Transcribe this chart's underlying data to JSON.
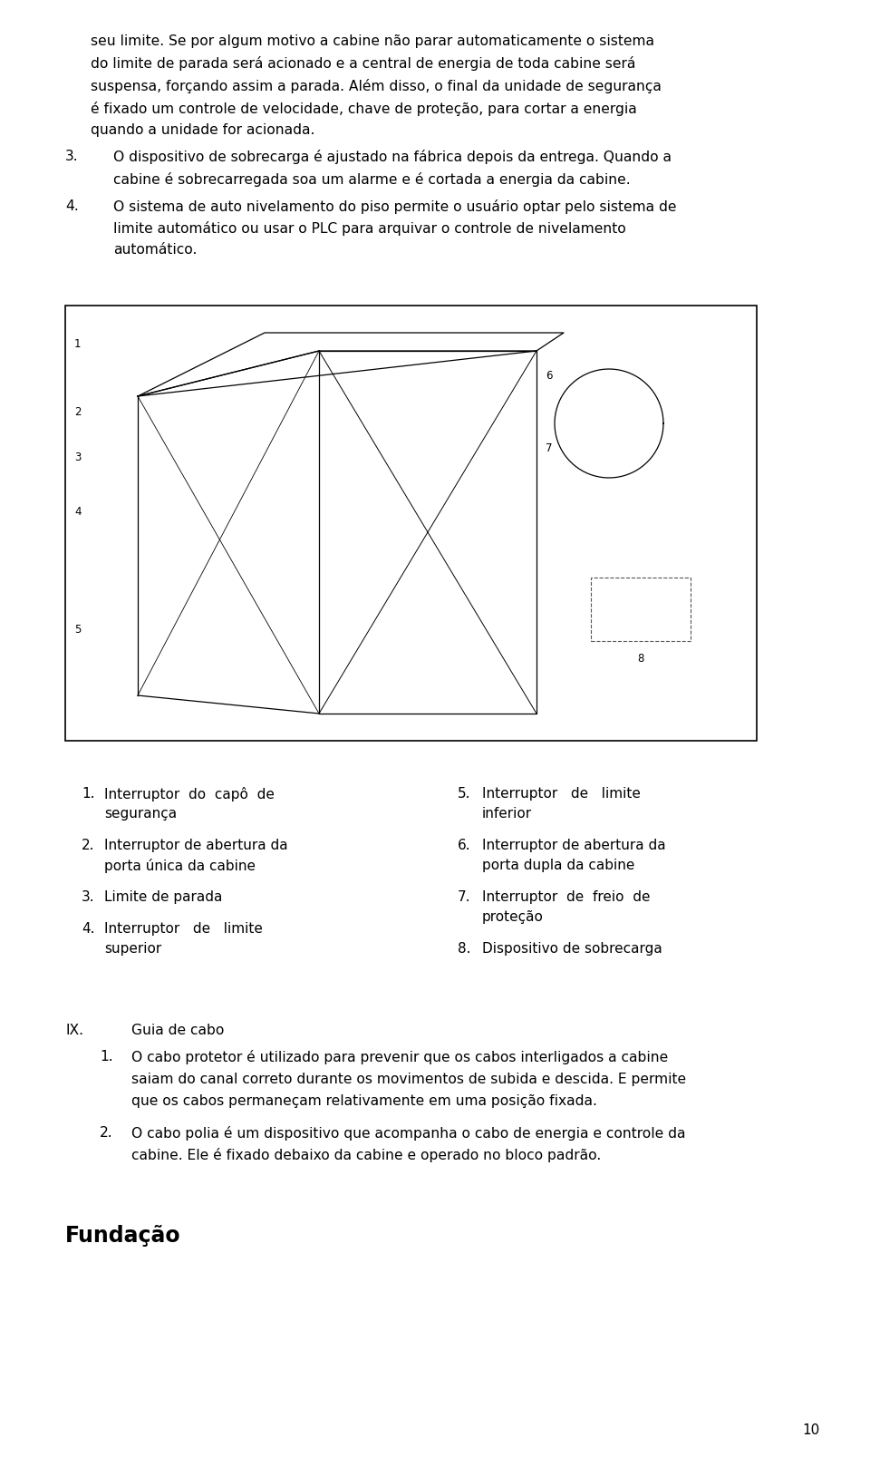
{
  "bg_color": "#ffffff",
  "text_color": "#000000",
  "page_number": "10",
  "top_text_lines": [
    "seu limite. Se por algum motivo a cabine não parar automaticamente o sistema",
    "do limite de parada será acionado e a central de energia de toda cabine será",
    "suspensa, forçando assim a parada. Além disso, o final da unidade de segurança",
    "é fixado um controle de velocidade, chave de proteção, para cortar a energia",
    "quando a unidade for acionada."
  ],
  "item3_num": "3.",
  "item3_lines": [
    "O dispositivo de sobrecarga é ajustado na fábrica depois da entrega. Quando a",
    "cabine é sobrecarregada soa um alarme e é cortada a energia da cabine."
  ],
  "item4_num": "4.",
  "item4_lines": [
    "O sistema de auto nivelamento do piso permite o usuário optar pelo sistema de",
    "limite automático ou usar o PLC para arquivar o controle de nivelamento",
    "automático."
  ],
  "left_legend": [
    {
      "num": "1.",
      "line1": "Interruptor  do  capô  de",
      "line2": "segurança"
    },
    {
      "num": "2.",
      "line1": "Interruptor de abertura da",
      "line2": "porta única da cabine"
    },
    {
      "num": "3.",
      "line1": "Limite de parada",
      "line2": ""
    },
    {
      "num": "4.",
      "line1": "Interruptor   de   limite",
      "line2": "superior"
    }
  ],
  "right_legend": [
    {
      "num": "5.",
      "line1": "Interruptor   de   limite",
      "line2": "inferior"
    },
    {
      "num": "6.",
      "line1": "Interruptor de abertura da",
      "line2": "porta dupla da cabine"
    },
    {
      "num": "7.",
      "line1": "Interruptor  de  freio  de",
      "line2": "proteção"
    },
    {
      "num": "8.",
      "line1": "Dispositivo de sobrecarga",
      "line2": ""
    }
  ],
  "section_roman": "IX.",
  "section_title": "Guia de cabo",
  "section_items": [
    {
      "num": "1.",
      "lines": [
        "O cabo protetor é utilizado para prevenir que os cabos interligados a cabine",
        "saiam do canal correto durante os movimentos de subida e descida. E permite",
        "que os cabos permaneçam relativamente em uma posição fixada."
      ]
    },
    {
      "num": "2.",
      "lines": [
        "O cabo polia é um dispositivo que acompanha o cabo de energia e controle da",
        "cabine. Ele é fixado debaixo da cabine e operado no bloco padrão."
      ]
    }
  ],
  "footer_heading": "Fundação",
  "body_fontsize": 11.2,
  "legend_fontsize": 11.0,
  "heading_fontsize": 17,
  "page_num_fontsize": 11.0
}
